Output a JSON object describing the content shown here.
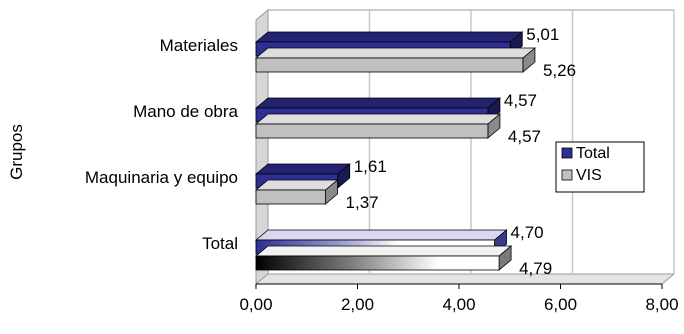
{
  "chart_data": {
    "type": "bar",
    "orientation": "horizontal",
    "ylabel": "Grupos",
    "xlabel": "",
    "categories": [
      "Materiales",
      "Mano de obra",
      "Maquinaria y equipo",
      "Total"
    ],
    "series": [
      {
        "name": "Total",
        "values": [
          5.01,
          4.57,
          1.61,
          4.7
        ],
        "labels": [
          "5,01",
          "4,57",
          "1,61",
          "4,70"
        ]
      },
      {
        "name": "VIS",
        "values": [
          5.26,
          4.57,
          1.37,
          4.79
        ],
        "labels": [
          "5,26",
          "4,57",
          "1,37",
          "4,79"
        ]
      }
    ],
    "xlim": [
      0,
      8
    ],
    "x_ticks": [
      0,
      2,
      4,
      6,
      8
    ],
    "x_tick_labels": [
      "0,00",
      "2,00",
      "4,00",
      "6,00",
      "8,00"
    ],
    "grid": "vertical",
    "legend_position": "right",
    "style": "3d",
    "colors": {
      "Total": "#2e2e96",
      "VIS": "#c0c0c0",
      "highlight_fill": "#ffffff",
      "shadow": "#8a8a8a",
      "gridline": "#c8c8c8",
      "wall": "#d6d6d6"
    }
  }
}
